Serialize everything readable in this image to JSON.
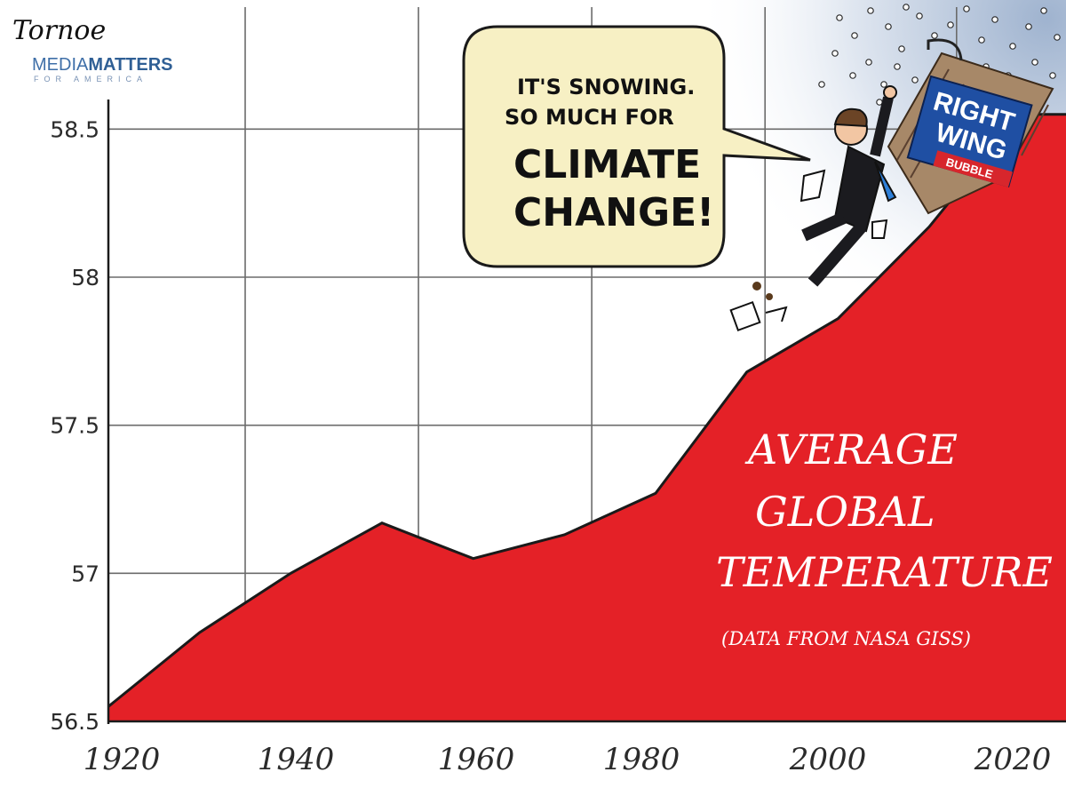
{
  "credit": {
    "artist_signature": "Tornoe",
    "publisher_line1_light": "MEDIA",
    "publisher_line1_bold": "MATTERS",
    "publisher_line2": "FOR AMERICA"
  },
  "speech_bubble": {
    "lines": [
      "IT'S SNOWING.",
      "SO MUCH FOR",
      "CLIMATE",
      "CHANGE!"
    ]
  },
  "sign": {
    "lines": [
      "RIGHT",
      "WING"
    ],
    "sub": "BUBBLE"
  },
  "colors": {
    "area_fill": "#e42127",
    "area_stroke": "#1a1a1a",
    "grid": "#6b6b6b",
    "bubble_fill": "#f7f0c4",
    "sky": "#cfd9e8",
    "sign_blue": "#1f4fa3",
    "sign_red": "#d7262c",
    "sign_brick": "#a78868"
  },
  "chart_data": {
    "type": "area",
    "title_lines": [
      "AVERAGE",
      "GLOBAL",
      "TEMPERATURE"
    ],
    "source_note": "(DATA FROM NASA GISS)",
    "x": [
      1920,
      1930,
      1940,
      1950,
      1960,
      1970,
      1980,
      1990,
      2000,
      2010,
      2020
    ],
    "values": [
      56.55,
      56.8,
      57.0,
      57.17,
      57.05,
      57.13,
      57.27,
      57.68,
      57.86,
      58.17,
      58.55
    ],
    "xticks": [
      "1920",
      "1940",
      "1960",
      "1980",
      "2000",
      "2020"
    ],
    "yticks": [
      "56.5",
      "57",
      "57.5",
      "58",
      "58.5"
    ],
    "xlim": [
      1920,
      2025
    ],
    "ylim": [
      56.5,
      58.6
    ],
    "grid": true
  }
}
